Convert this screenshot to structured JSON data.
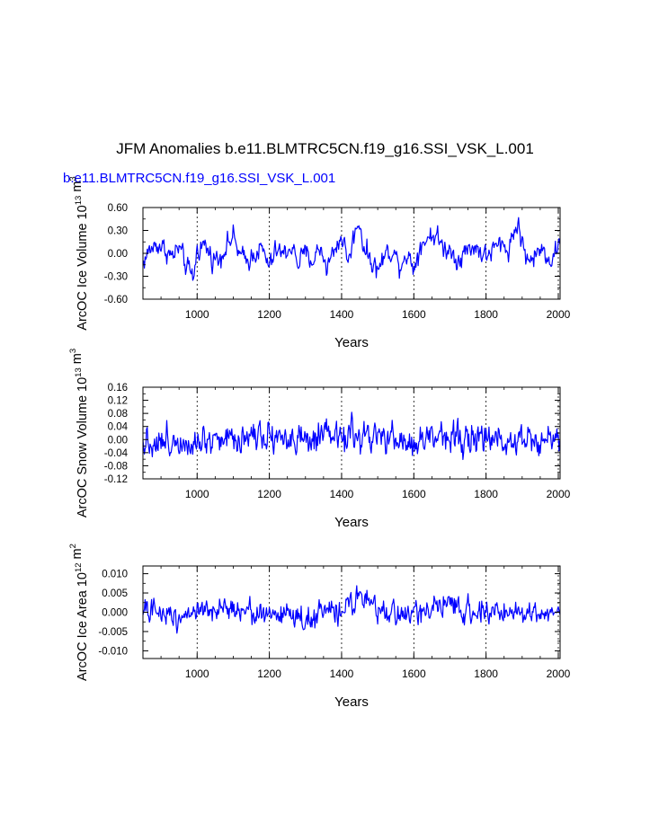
{
  "title": "JFM Anomalies b.e11.BLMTRC5CN.f19_g16.SSI_VSK_L.001",
  "case_label": "b.e11.BLMTRC5CN.f19_g16.SSI_VSK_L.001",
  "colors": {
    "series": "#0000ff",
    "axes": "#000000",
    "case_label": "#0000ff"
  },
  "chart_data": [
    {
      "type": "line",
      "ylabel": "ArcOC Ice Volume 10",
      "ylabel_exp": "13",
      "ylabel_unit": " m",
      "ylabel_unit_exp": "3",
      "xlabel": "Years",
      "xlim": [
        850,
        2005
      ],
      "ylim": [
        -0.6,
        0.6
      ],
      "xticks": [
        1000,
        1200,
        1400,
        1600,
        1800,
        2000
      ],
      "yticks": [
        -0.6,
        -0.3,
        0.0,
        0.3,
        0.6
      ],
      "ytick_labels": [
        "-0.60",
        "-0.30",
        "0.00",
        "0.30",
        "0.60"
      ],
      "vlines": [
        1000,
        1200,
        1400,
        1600,
        1800,
        2000
      ],
      "series": [
        {
          "step": 2,
          "x_start": 850,
          "x": [
            850,
            870,
            890,
            910,
            930,
            950,
            970,
            990,
            1000,
            1020,
            1040,
            1060,
            1080,
            1100,
            1120,
            1140,
            1160,
            1180,
            1200,
            1220,
            1240,
            1260,
            1280,
            1300,
            1320,
            1340,
            1360,
            1380,
            1400,
            1420,
            1440,
            1450,
            1460,
            1480,
            1500,
            1520,
            1540,
            1560,
            1580,
            1600,
            1620,
            1640,
            1660,
            1680,
            1700,
            1720,
            1740,
            1760,
            1780,
            1800,
            1820,
            1840,
            1860,
            1880,
            1890,
            1900,
            1920,
            1940,
            1960,
            1980,
            2000
          ],
          "y": [
            -0.12,
            0.05,
            0.12,
            0.06,
            -0.05,
            0.08,
            -0.18,
            -0.32,
            0.05,
            0.12,
            -0.05,
            -0.08,
            0.1,
            0.22,
            -0.05,
            -0.1,
            0.02,
            0.05,
            -0.18,
            0.05,
            -0.02,
            0.1,
            -0.12,
            0.0,
            -0.1,
            0.08,
            -0.18,
            0.05,
            0.22,
            -0.1,
            0.35,
            0.42,
            0.1,
            -0.08,
            -0.22,
            -0.02,
            0.05,
            -0.15,
            0.0,
            -0.18,
            0.12,
            0.22,
            0.25,
            0.08,
            0.05,
            -0.08,
            0.0,
            0.1,
            0.05,
            -0.05,
            0.05,
            0.12,
            0.05,
            0.3,
            0.42,
            0.1,
            -0.12,
            0.0,
            0.05,
            -0.1,
            0.12
          ],
          "noise_amplitude": 0.2
        }
      ]
    },
    {
      "type": "line",
      "ylabel": "ArcOC Snow Volume 10",
      "ylabel_exp": "13",
      "ylabel_unit": " m",
      "ylabel_unit_exp": "3",
      "xlabel": "Years",
      "xlim": [
        850,
        2005
      ],
      "ylim": [
        -0.12,
        0.16
      ],
      "xticks": [
        1000,
        1200,
        1400,
        1600,
        1800,
        2000
      ],
      "yticks": [
        -0.12,
        -0.08,
        -0.04,
        0.0,
        0.04,
        0.08,
        0.12,
        0.16
      ],
      "ytick_labels": [
        "-0.12",
        "-0.08",
        "-0.04",
        "0.00",
        "0.04",
        "0.08",
        "0.12",
        "0.16"
      ],
      "vlines": [
        1000,
        1200,
        1400,
        1600,
        1800,
        2000
      ],
      "series": [
        {
          "step": 2,
          "x_start": 850,
          "x": [
            850,
            900,
            950,
            1000,
            1050,
            1100,
            1150,
            1200,
            1250,
            1300,
            1350,
            1400,
            1450,
            1500,
            1550,
            1600,
            1650,
            1700,
            1750,
            1800,
            1850,
            1900,
            1950,
            2000
          ],
          "y": [
            0.0,
            -0.01,
            0.0,
            0.0,
            0.01,
            0.0,
            0.02,
            0.02,
            0.0,
            -0.01,
            0.0,
            0.01,
            0.01,
            0.0,
            0.0,
            -0.02,
            0.01,
            0.02,
            0.0,
            0.0,
            0.0,
            0.01,
            0.0,
            0.0
          ],
          "noise_amplitude": 0.07
        }
      ]
    },
    {
      "type": "line",
      "ylabel": "ArcOC Ice Area 10",
      "ylabel_exp": "12",
      "ylabel_unit": " m",
      "ylabel_unit_exp": "2",
      "xlabel": "Years",
      "xlim": [
        850,
        2005
      ],
      "ylim": [
        -0.012,
        0.012
      ],
      "xticks": [
        1000,
        1200,
        1400,
        1600,
        1800,
        2000
      ],
      "yticks": [
        -0.01,
        -0.005,
        0.0,
        0.005,
        0.01
      ],
      "ytick_labels": [
        "-0.010",
        "-0.005",
        "0.000",
        "0.005",
        "0.010"
      ],
      "vlines": [
        1000,
        1200,
        1400,
        1600,
        1800,
        2000
      ],
      "series": [
        {
          "step": 2,
          "x_start": 850,
          "x": [
            850,
            900,
            950,
            1000,
            1050,
            1100,
            1150,
            1200,
            1250,
            1300,
            1350,
            1400,
            1440,
            1500,
            1550,
            1600,
            1650,
            1700,
            1750,
            1800,
            1850,
            1900,
            1950,
            2000
          ],
          "y": [
            0.0,
            0.0,
            -0.001,
            0.001,
            -0.001,
            0.002,
            0.0,
            -0.001,
            0.0,
            -0.002,
            0.0,
            0.0,
            0.004,
            0.0,
            0.0,
            -0.001,
            0.002,
            0.001,
            0.001,
            0.0,
            0.0,
            0.0,
            0.0,
            0.001
          ],
          "noise_amplitude": 0.0045
        }
      ]
    }
  ]
}
